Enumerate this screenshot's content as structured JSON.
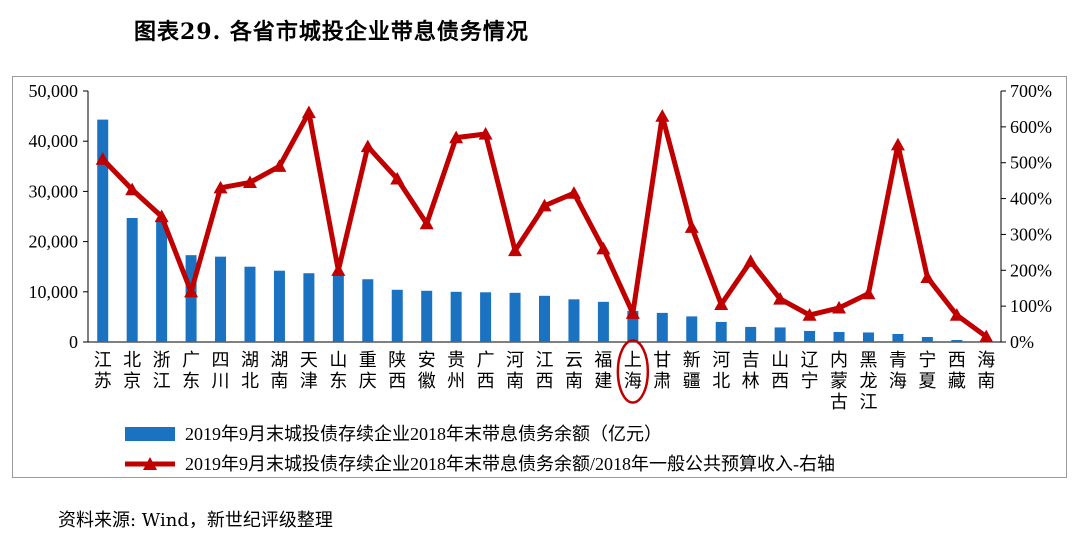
{
  "title": "图表29. 各省市城投企业带息债务情况",
  "source": "资料来源: Wind，新世纪评级整理",
  "colors": {
    "bar": "#1a72c1",
    "line": "#c00000",
    "highlight": "#c00000",
    "frame": "#9a9a9a"
  },
  "chart_data": {
    "type": "bar+line",
    "categories": [
      "江苏",
      "北京",
      "浙江",
      "广东",
      "四川",
      "湖北",
      "湖南",
      "天津",
      "山东",
      "重庆",
      "陕西",
      "安徽",
      "贵州",
      "广西",
      "河南",
      "江西",
      "云南",
      "福建",
      "上海",
      "甘肃",
      "新疆",
      "河北",
      "吉林",
      "山西",
      "辽宁",
      "内蒙古",
      "黑龙江",
      "青海",
      "宁夏",
      "西藏",
      "海南"
    ],
    "highlight_category": "上海",
    "y_left": {
      "min": 0,
      "max": 50000,
      "ticks": [
        "0",
        "10,000",
        "20,000",
        "30,000",
        "40,000",
        "50,000"
      ]
    },
    "y_right": {
      "min": 0,
      "max": 7,
      "ticks": [
        "0%",
        "100%",
        "200%",
        "300%",
        "400%",
        "500%",
        "600%",
        "700%"
      ]
    },
    "series": [
      {
        "name": "2019年9月末城投债存续企业2018年末带息债务余额（亿元）",
        "type": "bar",
        "axis": "left",
        "values": [
          44300,
          24700,
          24000,
          17300,
          17000,
          15000,
          14200,
          13700,
          13300,
          12500,
          10400,
          10200,
          10000,
          9900,
          9800,
          9200,
          8500,
          8000,
          6200,
          5800,
          5100,
          4000,
          3000,
          2900,
          2200,
          2000,
          1900,
          1600,
          1000,
          400,
          200
        ]
      },
      {
        "name": "2019年9月末城投债存续企业2018年末带息债务余额/2018年一般公共预算收入-右轴",
        "type": "line",
        "axis": "right",
        "values": [
          5.1,
          4.25,
          3.5,
          1.4,
          4.3,
          4.45,
          4.9,
          6.4,
          2.0,
          5.45,
          4.55,
          3.3,
          5.7,
          5.8,
          2.55,
          3.8,
          4.15,
          2.6,
          0.8,
          6.3,
          3.2,
          1.05,
          2.25,
          1.2,
          0.75,
          0.95,
          1.35,
          5.5,
          1.8,
          0.75,
          0.15
        ]
      }
    ],
    "legend_position": "bottom"
  }
}
